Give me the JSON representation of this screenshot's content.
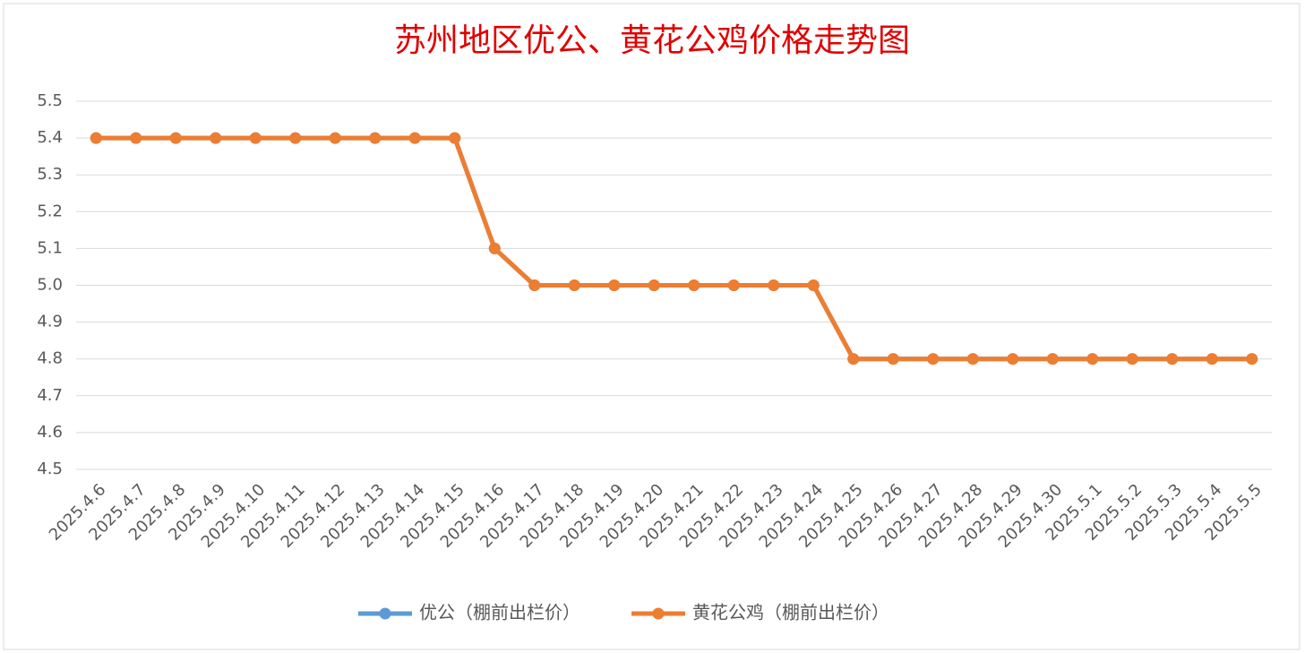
{
  "chart_data": {
    "type": "line",
    "title": "苏州地区优公、黄花公鸡价格走势图",
    "categories": [
      "2025.4.6",
      "2025.4.7",
      "2025.4.8",
      "2025.4.9",
      "2025.4.10",
      "2025.4.11",
      "2025.4.12",
      "2025.4.13",
      "2025.4.14",
      "2025.4.15",
      "2025.4.16",
      "2025.4.17",
      "2025.4.18",
      "2025.4.19",
      "2025.4.20",
      "2025.4.21",
      "2025.4.22",
      "2025.4.23",
      "2025.4.24",
      "2025.4.25",
      "2025.4.26",
      "2025.4.27",
      "2025.4.28",
      "2025.4.29",
      "2025.4.30",
      "2025.5.1",
      "2025.5.2",
      "2025.5.3",
      "2025.5.4",
      "2025.5.5"
    ],
    "series": [
      {
        "name": "优公（棚前出栏价）",
        "color": "#5b9bd5",
        "values": [
          5.4,
          5.4,
          5.4,
          5.4,
          5.4,
          5.4,
          5.4,
          5.4,
          5.4,
          5.4,
          5.1,
          5.0,
          5.0,
          5.0,
          5.0,
          5.0,
          5.0,
          5.0,
          5.0,
          4.8,
          4.8,
          4.8,
          4.8,
          4.8,
          4.8,
          4.8,
          4.8,
          4.8,
          4.8,
          4.8
        ]
      },
      {
        "name": "黄花公鸡（棚前出栏价）",
        "color": "#ed7d31",
        "values": [
          5.4,
          5.4,
          5.4,
          5.4,
          5.4,
          5.4,
          5.4,
          5.4,
          5.4,
          5.4,
          5.1,
          5.0,
          5.0,
          5.0,
          5.0,
          5.0,
          5.0,
          5.0,
          5.0,
          4.8,
          4.8,
          4.8,
          4.8,
          4.8,
          4.8,
          4.8,
          4.8,
          4.8,
          4.8,
          4.8
        ]
      }
    ],
    "ylim": [
      4.5,
      5.5
    ],
    "yticks": [
      4.5,
      4.6,
      4.7,
      4.8,
      4.9,
      {
        "value": 5,
        "label": "5.0"
      },
      5.1,
      5.2,
      5.3,
      5.4,
      5.5
    ],
    "grid": true,
    "legend": "bottom"
  }
}
